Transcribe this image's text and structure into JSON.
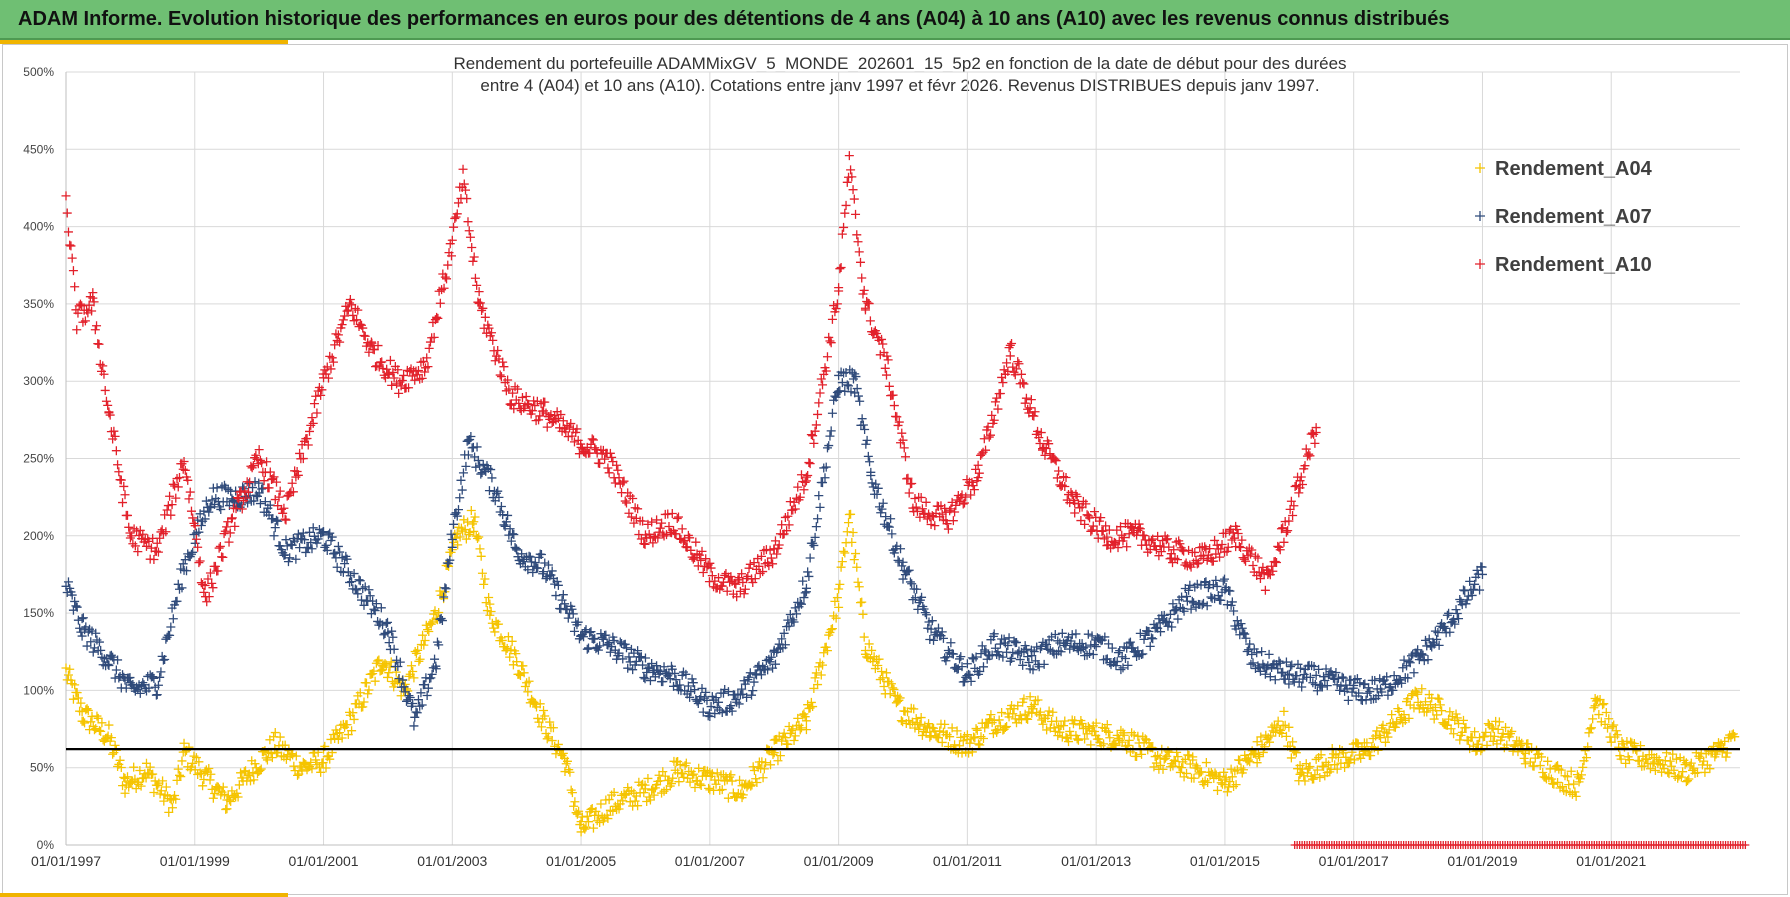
{
  "banner": {
    "title": "ADAM Informe. Evolution historique des performances en euros pour des détentions de 4 ans (A04) à 10 ans (A10) avec les revenus connus distribués"
  },
  "colors": {
    "banner_bg": "#6fbf73",
    "accent": "#f0b400",
    "a04": "#f5c400",
    "a07": "#2f4a7a",
    "a10": "#e2202a",
    "reference_line": "#000000",
    "grid": "#d9d9d9"
  },
  "chart_data": {
    "type": "scatter",
    "title_line1": "Rendement du portefeuille ADAMMixGV_5_MONDE_202601_15_5p2  en fonction de la date de début pour des durées",
    "title_line2": "entre 4 (A04) et 10 ans (A10). Cotations  entre janv 1997 et févr 2026. Revenus DISTRIBUES depuis janv 1997.",
    "xlabel": "",
    "ylabel": "",
    "x_range": [
      "1997-01-01",
      "2023-02-01"
    ],
    "ylim": [
      0,
      500
    ],
    "y_ticks": [
      "0%",
      "50%",
      "100%",
      "150%",
      "200%",
      "250%",
      "300%",
      "350%",
      "400%",
      "450%",
      "500%"
    ],
    "x_ticks": [
      "01/01/1997",
      "01/01/1999",
      "01/01/2001",
      "01/01/2003",
      "01/01/2005",
      "01/01/2007",
      "01/01/2009",
      "01/01/2011",
      "01/01/2013",
      "01/01/2015",
      "01/01/2017",
      "01/01/2019",
      "01/01/2021"
    ],
    "grid": true,
    "legend_position": "top-right",
    "marker": "+",
    "reference_line_y": 62,
    "series": [
      {
        "name": "Rendement_A04",
        "key": "a04",
        "anchors": [
          [
            "1997-01-01",
            112
          ],
          [
            "1997-04-01",
            85
          ],
          [
            "1997-09-01",
            70
          ],
          [
            "1997-12-01",
            40
          ],
          [
            "1998-04-01",
            48
          ],
          [
            "1998-09-01",
            25
          ],
          [
            "1998-11-01",
            60
          ],
          [
            "1999-04-01",
            40
          ],
          [
            "1999-07-01",
            28
          ],
          [
            "1999-12-01",
            50
          ],
          [
            "2000-04-01",
            65
          ],
          [
            "2000-09-01",
            50
          ],
          [
            "2001-01-01",
            55
          ],
          [
            "2001-06-01",
            80
          ],
          [
            "2001-12-01",
            120
          ],
          [
            "2002-04-01",
            100
          ],
          [
            "2002-10-01",
            150
          ],
          [
            "2003-02-01",
            200
          ],
          [
            "2003-05-01",
            210
          ],
          [
            "2003-08-01",
            150
          ],
          [
            "2004-01-01",
            120
          ],
          [
            "2004-06-01",
            80
          ],
          [
            "2004-10-01",
            55
          ],
          [
            "2005-01-01",
            10
          ],
          [
            "2005-06-01",
            25
          ],
          [
            "2006-01-01",
            35
          ],
          [
            "2006-07-01",
            48
          ],
          [
            "2007-01-01",
            42
          ],
          [
            "2007-07-01",
            35
          ],
          [
            "2008-01-01",
            60
          ],
          [
            "2008-07-01",
            80
          ],
          [
            "2009-01-01",
            160
          ],
          [
            "2009-03-01",
            215
          ],
          [
            "2009-06-01",
            130
          ],
          [
            "2009-12-01",
            90
          ],
          [
            "2010-06-01",
            75
          ],
          [
            "2011-01-01",
            65
          ],
          [
            "2011-06-01",
            80
          ],
          [
            "2012-01-01",
            90
          ],
          [
            "2012-06-01",
            75
          ],
          [
            "2013-01-01",
            72
          ],
          [
            "2013-06-01",
            70
          ],
          [
            "2014-01-01",
            55
          ],
          [
            "2014-07-01",
            50
          ],
          [
            "2015-01-01",
            40
          ],
          [
            "2015-07-01",
            60
          ],
          [
            "2015-12-01",
            80
          ],
          [
            "2016-03-01",
            45
          ],
          [
            "2016-09-01",
            55
          ],
          [
            "2017-03-01",
            60
          ],
          [
            "2017-09-01",
            80
          ],
          [
            "2018-01-01",
            95
          ],
          [
            "2018-06-01",
            85
          ],
          [
            "2018-12-01",
            65
          ],
          [
            "2019-03-01",
            75
          ],
          [
            "2019-09-01",
            60
          ],
          [
            "2020-03-01",
            45
          ],
          [
            "2020-07-01",
            38
          ],
          [
            "2020-10-01",
            95
          ],
          [
            "2021-03-01",
            60
          ],
          [
            "2021-09-01",
            55
          ],
          [
            "2022-03-01",
            48
          ],
          [
            "2022-09-01",
            60
          ],
          [
            "2022-12-01",
            70
          ]
        ]
      },
      {
        "name": "Rendement_A07",
        "key": "a07",
        "anchors": [
          [
            "1997-01-01",
            168
          ],
          [
            "1997-04-01",
            140
          ],
          [
            "1997-09-01",
            120
          ],
          [
            "1998-01-01",
            100
          ],
          [
            "1998-06-01",
            105
          ],
          [
            "1998-11-01",
            180
          ],
          [
            "1999-04-01",
            225
          ],
          [
            "1999-09-01",
            225
          ],
          [
            "2000-01-01",
            230
          ],
          [
            "2000-06-01",
            190
          ],
          [
            "2001-01-01",
            200
          ],
          [
            "2001-06-01",
            175
          ],
          [
            "2002-01-01",
            140
          ],
          [
            "2002-06-01",
            80
          ],
          [
            "2002-10-01",
            120
          ],
          [
            "2003-01-01",
            200
          ],
          [
            "2003-04-01",
            260
          ],
          [
            "2003-09-01",
            230
          ],
          [
            "2004-01-01",
            190
          ],
          [
            "2004-06-01",
            180
          ],
          [
            "2005-01-01",
            135
          ],
          [
            "2005-06-01",
            130
          ],
          [
            "2006-01-01",
            115
          ],
          [
            "2006-06-01",
            110
          ],
          [
            "2007-01-01",
            90
          ],
          [
            "2007-06-01",
            95
          ],
          [
            "2008-01-01",
            120
          ],
          [
            "2008-07-01",
            170
          ],
          [
            "2009-01-01",
            300
          ],
          [
            "2009-04-01",
            300
          ],
          [
            "2009-07-01",
            240
          ],
          [
            "2010-01-01",
            180
          ],
          [
            "2010-06-01",
            140
          ],
          [
            "2011-01-01",
            110
          ],
          [
            "2011-06-01",
            130
          ],
          [
            "2012-01-01",
            120
          ],
          [
            "2012-06-01",
            130
          ],
          [
            "2013-01-01",
            130
          ],
          [
            "2013-06-01",
            120
          ],
          [
            "2014-01-01",
            140
          ],
          [
            "2014-06-01",
            160
          ],
          [
            "2015-01-01",
            165
          ],
          [
            "2015-06-01",
            120
          ],
          [
            "2016-01-01",
            110
          ],
          [
            "2016-06-01",
            108
          ],
          [
            "2017-01-01",
            100
          ],
          [
            "2017-06-01",
            100
          ],
          [
            "2018-01-01",
            120
          ],
          [
            "2018-06-01",
            140
          ],
          [
            "2019-01-01",
            175
          ]
        ]
      },
      {
        "name": "Rendement_A10",
        "key": "a10",
        "anchors": [
          [
            "1997-01-01",
            420
          ],
          [
            "1997-03-01",
            340
          ],
          [
            "1997-06-01",
            350
          ],
          [
            "1997-09-01",
            280
          ],
          [
            "1998-01-01",
            200
          ],
          [
            "1998-06-01",
            190
          ],
          [
            "1998-11-01",
            250
          ],
          [
            "1999-03-01",
            160
          ],
          [
            "1999-08-01",
            210
          ],
          [
            "2000-01-01",
            250
          ],
          [
            "2000-06-01",
            215
          ],
          [
            "2001-01-01",
            300
          ],
          [
            "2001-06-01",
            350
          ],
          [
            "2001-10-01",
            320
          ],
          [
            "2002-03-01",
            300
          ],
          [
            "2002-08-01",
            310
          ],
          [
            "2003-01-01",
            390
          ],
          [
            "2003-03-01",
            430
          ],
          [
            "2003-06-01",
            350
          ],
          [
            "2003-12-01",
            290
          ],
          [
            "2004-06-01",
            280
          ],
          [
            "2005-01-01",
            260
          ],
          [
            "2005-06-01",
            250
          ],
          [
            "2006-01-01",
            200
          ],
          [
            "2006-06-01",
            210
          ],
          [
            "2007-01-01",
            175
          ],
          [
            "2007-06-01",
            165
          ],
          [
            "2008-01-01",
            190
          ],
          [
            "2008-07-01",
            240
          ],
          [
            "2009-01-01",
            360
          ],
          [
            "2009-03-01",
            440
          ],
          [
            "2009-06-01",
            350
          ],
          [
            "2009-10-01",
            310
          ],
          [
            "2010-03-01",
            220
          ],
          [
            "2010-09-01",
            210
          ],
          [
            "2011-03-01",
            240
          ],
          [
            "2011-09-01",
            320
          ],
          [
            "2012-03-01",
            260
          ],
          [
            "2012-09-01",
            220
          ],
          [
            "2013-03-01",
            200
          ],
          [
            "2013-09-01",
            200
          ],
          [
            "2014-03-01",
            190
          ],
          [
            "2014-09-01",
            185
          ],
          [
            "2015-03-01",
            200
          ],
          [
            "2015-09-01",
            170
          ],
          [
            "2016-03-01",
            235
          ],
          [
            "2016-06-01",
            270
          ]
        ]
      }
    ],
    "distribution_marker_range": [
      "2016-02-01",
      "2023-02-01"
    ]
  }
}
